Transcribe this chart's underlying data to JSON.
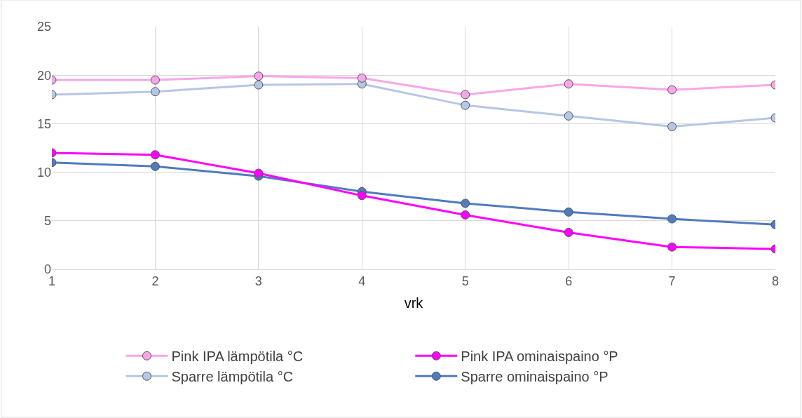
{
  "chart_data": {
    "type": "line",
    "xlabel": "vrk",
    "x": [
      1,
      2,
      3,
      4,
      5,
      6,
      7,
      8
    ],
    "xlim": [
      1,
      8
    ],
    "xticks": [
      1,
      2,
      3,
      4,
      5,
      6,
      7,
      8
    ],
    "ylim": [
      0,
      25
    ],
    "yticks": [
      0,
      5,
      10,
      15,
      20,
      25
    ],
    "grid": true,
    "legend": "bottom",
    "marker": "circle",
    "line_style": "solid",
    "series": [
      {
        "name": "Pink IPA lämpötila °C",
        "color": "#f7a6e8",
        "values": [
          19.5,
          19.5,
          19.9,
          19.7,
          18.0,
          19.1,
          18.5,
          19.0
        ]
      },
      {
        "name": "Pink IPA ominaispaino °P",
        "color": "#ff00ff",
        "values": [
          12.0,
          11.8,
          9.9,
          7.6,
          5.6,
          3.8,
          2.3,
          2.1
        ]
      },
      {
        "name": "Sparre lämpötila °C",
        "color": "#b4c7e7",
        "values": [
          18.0,
          18.3,
          19.0,
          19.1,
          16.9,
          15.8,
          14.7,
          15.6
        ]
      },
      {
        "name": "Sparre ominaispaino °P",
        "color": "#4f7bc0",
        "values": [
          11.0,
          10.6,
          9.6,
          8.0,
          6.8,
          5.9,
          5.2,
          4.6
        ]
      }
    ]
  }
}
